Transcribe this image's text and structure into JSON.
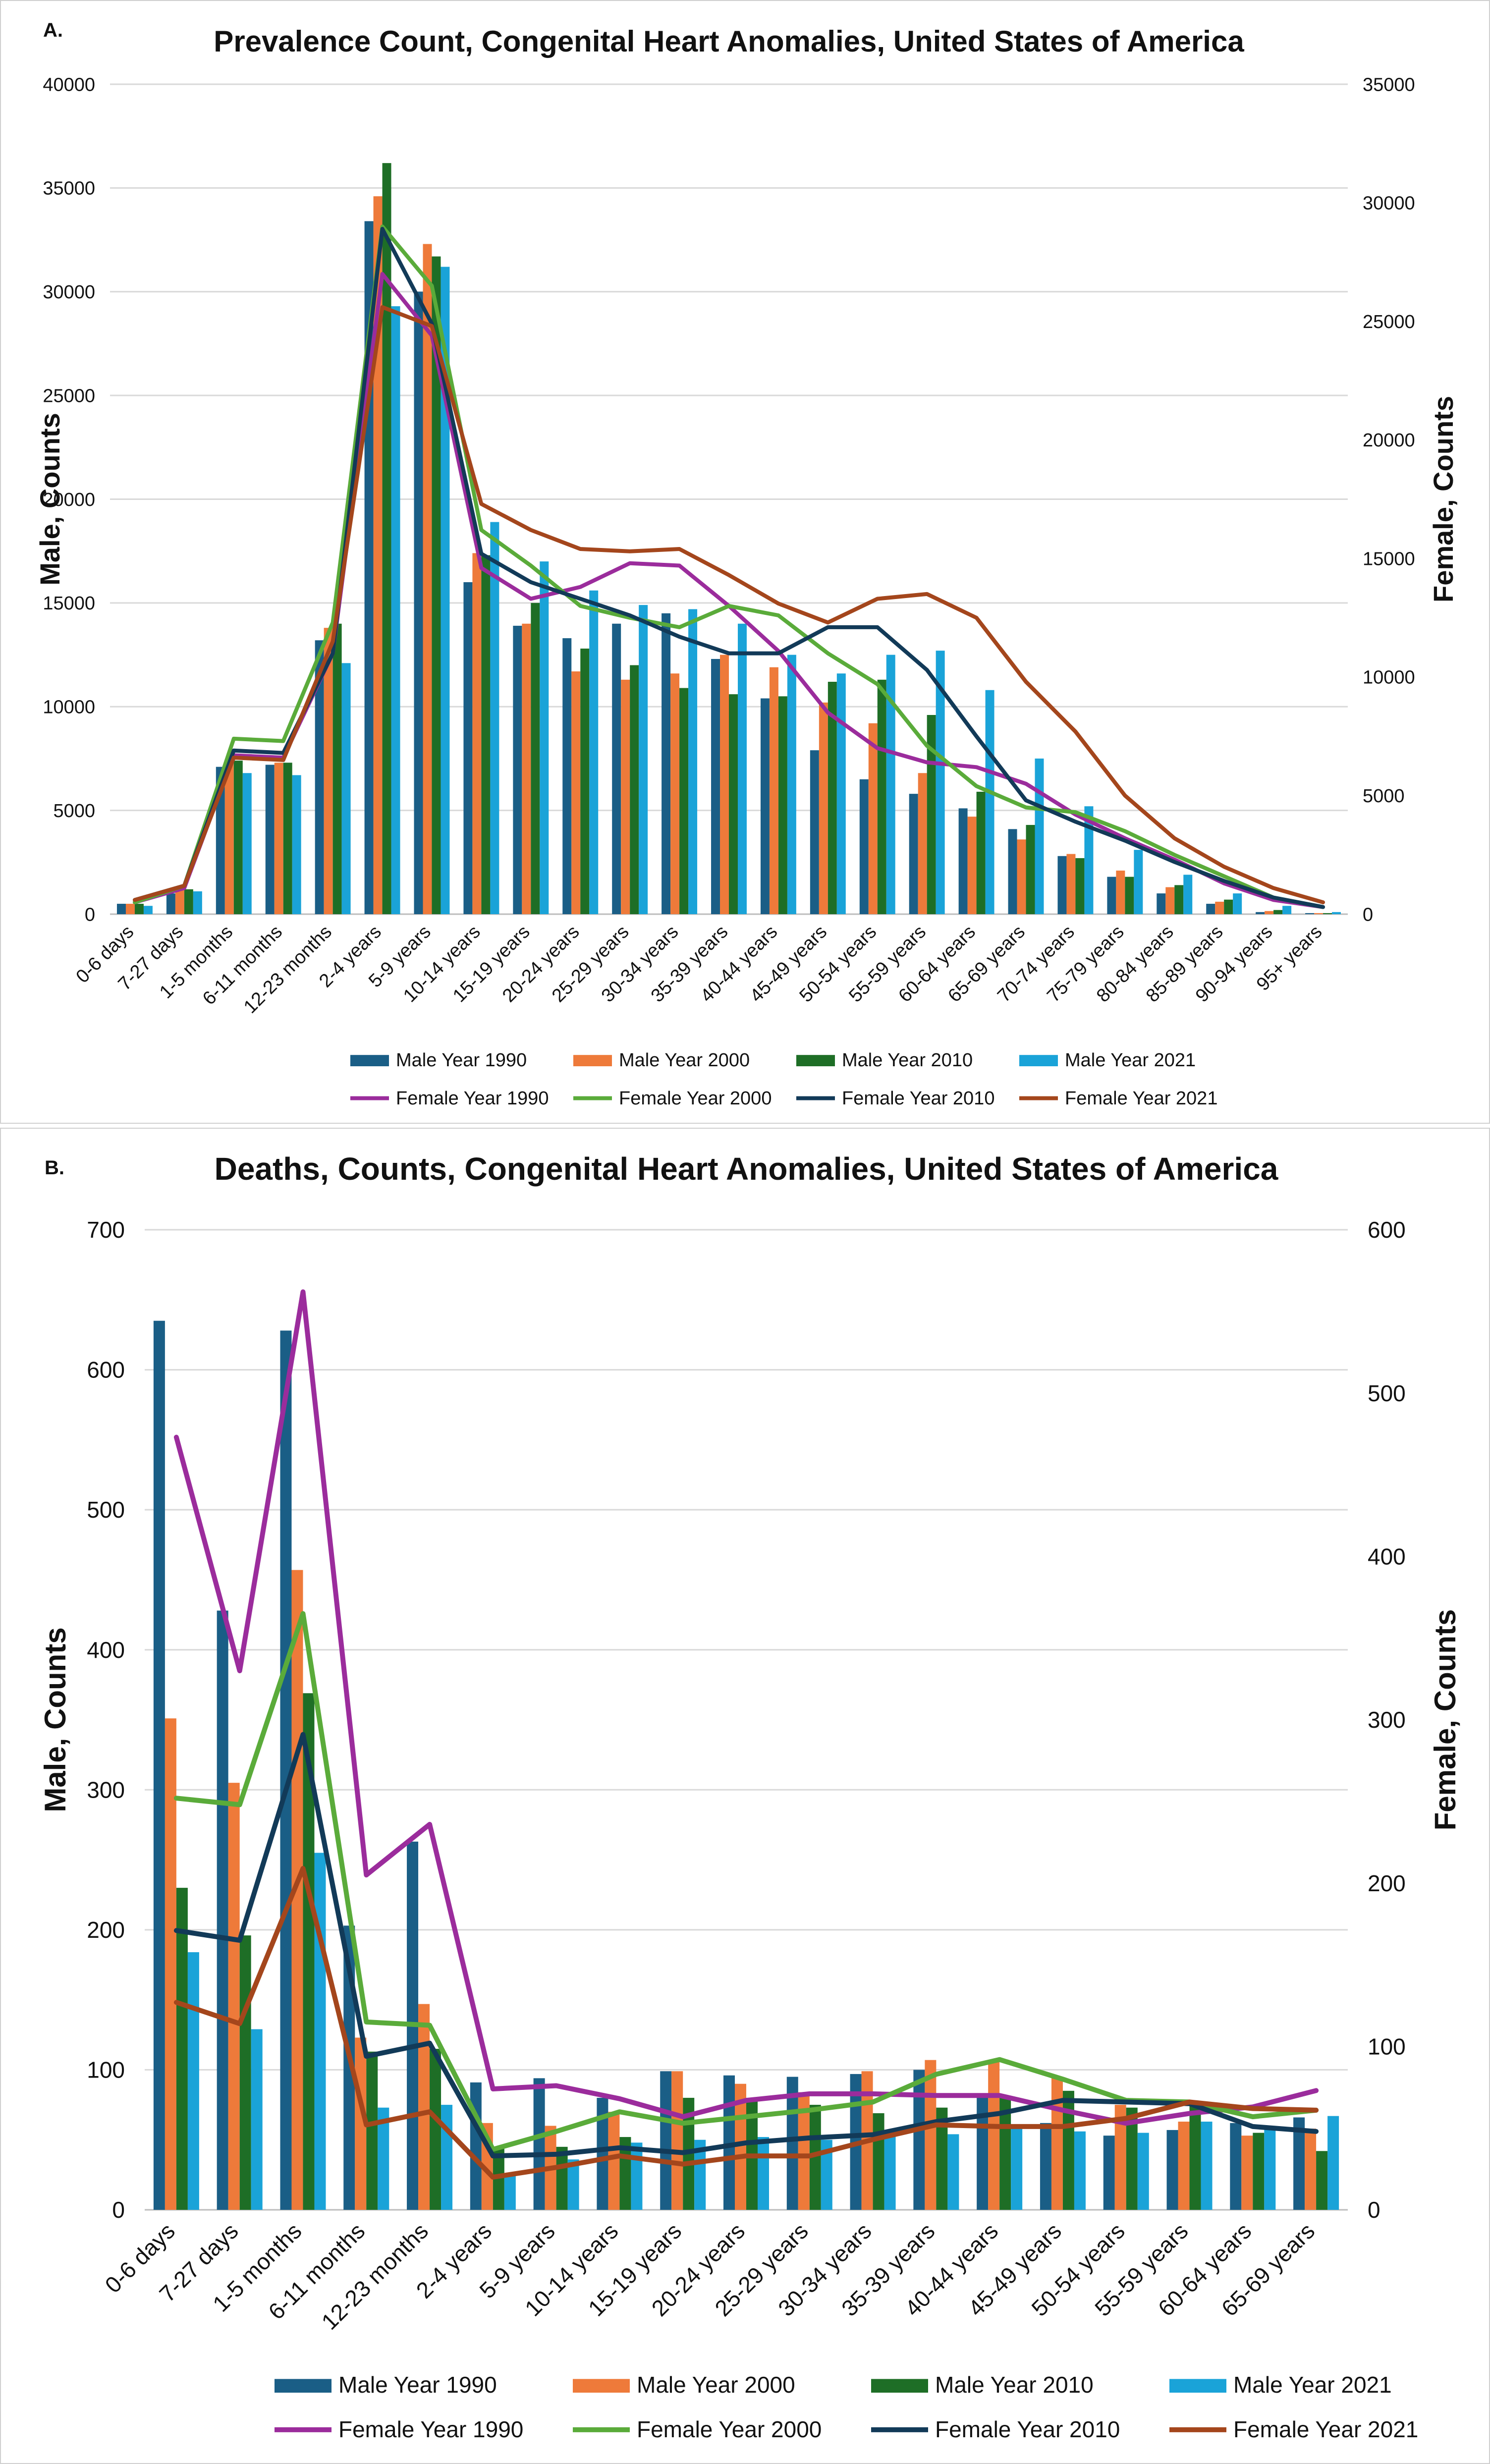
{
  "chart_data": [
    {
      "panel_label": "A.",
      "type": "bar+line",
      "title": "Prevalence Count, Congenital Heart Anomalies, United States of America",
      "ylabel": "Male, Counts",
      "y2label": "Female, Counts",
      "ylim": [
        0,
        40000
      ],
      "y2lim": [
        0,
        35000
      ],
      "yticks": [
        "0",
        "5000",
        "10000",
        "15000",
        "20000",
        "25000",
        "30000",
        "35000",
        "40000"
      ],
      "y2ticks": [
        "0",
        "5000",
        "10000",
        "15000",
        "20000",
        "25000",
        "30000",
        "35000"
      ],
      "categories": [
        "0-6 days",
        "7-27 days",
        "1-5 months",
        "6-11 months",
        "12-23 months",
        "2-4 years",
        "5-9 years",
        "10-14 years",
        "15-19 years",
        "20-24 years",
        "25-29 years",
        "30-34 years",
        "35-39 years",
        "40-44 years",
        "45-49 years",
        "50-54 years",
        "55-59 years",
        "60-64 years",
        "65-69 years",
        "70-74 years",
        "75-79 years",
        "80-84 years",
        "85-89 years",
        "90-94 years",
        "95+ years"
      ],
      "bar_series": [
        {
          "name": "Male Year 1990",
          "color": "#1a5e86",
          "values": [
            500,
            1000,
            7100,
            7200,
            13200,
            33400,
            30000,
            16000,
            13900,
            13300,
            14000,
            14500,
            12300,
            10400,
            7900,
            6500,
            5800,
            5100,
            4100,
            2800,
            1800,
            1000,
            500,
            100,
            50
          ]
        },
        {
          "name": "Male Year 2000",
          "color": "#ee7a3a",
          "values": [
            500,
            1200,
            7400,
            7300,
            13800,
            34600,
            32300,
            17400,
            14000,
            11700,
            11300,
            11600,
            12500,
            11900,
            10200,
            9200,
            6800,
            4700,
            3600,
            2900,
            2100,
            1300,
            600,
            150,
            50
          ]
        },
        {
          "name": "Male Year 2010",
          "color": "#1e6e26",
          "values": [
            500,
            1200,
            7400,
            7300,
            14000,
            36200,
            31700,
            17300,
            15000,
            12800,
            12000,
            10900,
            10600,
            10500,
            11200,
            11300,
            9600,
            5900,
            4300,
            2700,
            1800,
            1400,
            700,
            200,
            50
          ]
        },
        {
          "name": "Male Year 2021",
          "color": "#1aa3d8",
          "values": [
            400,
            1100,
            6800,
            6700,
            12100,
            29300,
            31200,
            18900,
            17000,
            15600,
            14900,
            14700,
            14000,
            12500,
            11600,
            12500,
            12700,
            10800,
            7500,
            5200,
            3100,
            1900,
            1000,
            400,
            100
          ]
        }
      ],
      "line_series": [
        {
          "name": "Female Year 1990",
          "color": "#9b2c9c",
          "values": [
            500,
            1100,
            6700,
            6600,
            11000,
            27000,
            24400,
            14600,
            13300,
            13800,
            14800,
            14700,
            13000,
            11100,
            8500,
            7000,
            6400,
            6200,
            5500,
            4200,
            3200,
            2300,
            1300,
            600,
            300
          ]
        },
        {
          "name": "Female Year 2000",
          "color": "#5aab3a",
          "values": [
            500,
            1200,
            7400,
            7300,
            12300,
            29000,
            26500,
            16200,
            14700,
            13000,
            12500,
            12100,
            13000,
            12600,
            11000,
            9700,
            7100,
            5400,
            4500,
            4300,
            3500,
            2500,
            1600,
            700,
            300
          ]
        },
        {
          "name": "Female Year 2010",
          "color": "#123a58",
          "values": [
            600,
            1200,
            6900,
            6800,
            11000,
            28900,
            24900,
            15200,
            14000,
            13300,
            12600,
            11700,
            11000,
            11000,
            12100,
            12100,
            10300,
            7500,
            4800,
            3900,
            3100,
            2200,
            1400,
            700,
            300
          ]
        },
        {
          "name": "Female Year 2021",
          "color": "#a4461c",
          "values": [
            600,
            1200,
            6600,
            6500,
            11500,
            25600,
            24800,
            17300,
            16200,
            15400,
            15300,
            15400,
            14300,
            13100,
            12300,
            13300,
            13500,
            12500,
            9800,
            7700,
            5000,
            3200,
            2000,
            1100,
            500
          ]
        }
      ],
      "legend_position": "bottom"
    },
    {
      "panel_label": "B.",
      "type": "bar+line",
      "title": "Deaths, Counts, Congenital Heart Anomalies, United States of America",
      "ylabel": "Male, Counts",
      "y2label": "Female, Counts",
      "ylim": [
        0,
        700
      ],
      "y2lim": [
        0,
        600
      ],
      "yticks": [
        "0",
        "100",
        "200",
        "300",
        "400",
        "500",
        "600",
        "700"
      ],
      "y2ticks": [
        "0",
        "100",
        "200",
        "300",
        "400",
        "500",
        "600"
      ],
      "categories": [
        "0-6 days",
        "7-27 days",
        "1-5 months",
        "6-11 months",
        "12-23 months",
        "2-4 years",
        "5-9 years",
        "10-14 years",
        "15-19 years",
        "20-24 years",
        "25-29 years",
        "30-34 years",
        "35-39 years",
        "40-44 years",
        "45-49 years",
        "50-54 years",
        "55-59 years",
        "60-64 years",
        "65-69 years"
      ],
      "bar_series": [
        {
          "name": "Male Year 1990",
          "color": "#1a5e86",
          "values": [
            635,
            428,
            628,
            203,
            263,
            91,
            94,
            80,
            99,
            96,
            95,
            97,
            100,
            82,
            62,
            53,
            57,
            62,
            66
          ]
        },
        {
          "name": "Male Year 2000",
          "color": "#ee7a3a",
          "values": [
            351,
            305,
            457,
            123,
            147,
            62,
            60,
            70,
            99,
            90,
            84,
            99,
            107,
            106,
            95,
            75,
            63,
            53,
            58
          ]
        },
        {
          "name": "Male Year 2010",
          "color": "#1e6e26",
          "values": [
            230,
            196,
            369,
            113,
            115,
            45,
            45,
            52,
            80,
            80,
            75,
            69,
            73,
            80,
            85,
            73,
            76,
            55,
            42
          ]
        },
        {
          "name": "Male Year 2021",
          "color": "#1aa3d8",
          "values": [
            184,
            129,
            255,
            73,
            75,
            25,
            36,
            48,
            50,
            52,
            50,
            55,
            54,
            60,
            56,
            55,
            63,
            60,
            67
          ]
        }
      ],
      "line_series": [
        {
          "name": "Female Year 1990",
          "color": "#9b2c9c",
          "values": [
            473,
            330,
            562,
            205,
            236,
            74,
            76,
            68,
            57,
            67,
            71,
            71,
            70,
            70,
            61,
            53,
            59,
            63,
            73
          ]
        },
        {
          "name": "Female Year 2000",
          "color": "#5aab3a",
          "values": [
            252,
            248,
            365,
            115,
            113,
            37,
            48,
            60,
            53,
            57,
            61,
            66,
            83,
            92,
            80,
            67,
            66,
            57,
            61
          ]
        },
        {
          "name": "Female Year 2010",
          "color": "#123a58",
          "values": [
            171,
            165,
            291,
            94,
            102,
            33,
            34,
            38,
            35,
            41,
            44,
            46,
            54,
            59,
            67,
            66,
            65,
            51,
            48
          ]
        },
        {
          "name": "Female Year 2021",
          "color": "#a4461c",
          "values": [
            127,
            114,
            209,
            52,
            60,
            20,
            26,
            33,
            28,
            33,
            33,
            43,
            52,
            51,
            51,
            56,
            66,
            62,
            61
          ]
        }
      ],
      "legend_position": "bottom"
    }
  ]
}
